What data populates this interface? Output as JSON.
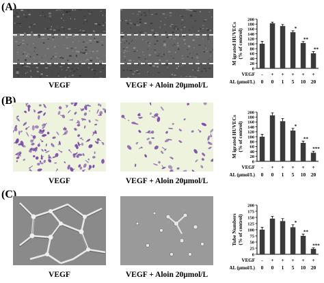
{
  "panels": [
    {
      "label": "(A)",
      "images": [
        {
          "caption": "VEGF"
        },
        {
          "caption": "VEGF + Aloin 20μmol/L"
        }
      ]
    },
    {
      "label": "(B)",
      "images": [
        {
          "caption": "VEGF"
        },
        {
          "caption": "VEGF + Aloin 20μmol/L"
        }
      ]
    },
    {
      "label": "(C)",
      "images": [
        {
          "caption": "VEGF"
        },
        {
          "caption": "VEGF + Aloin 20μmol/L"
        }
      ]
    }
  ],
  "colors": {
    "bar": "#3a3a3a",
    "stain": "#7a4aa8",
    "stain_bg": "#eef3dd",
    "phase_bg": "#8a8a8a"
  },
  "chart_data": [
    {
      "type": "bar",
      "ylabel": "M igrated HUVECs\n(% of control)",
      "ylim": [
        0,
        200
      ],
      "yticks": [
        0,
        20,
        40,
        60,
        80,
        100,
        120,
        140,
        160,
        180,
        200
      ],
      "row_labels": [
        "VEGF",
        "AL (μmol/L)"
      ],
      "vegf": [
        "-",
        "+",
        "+",
        "+",
        "+",
        "+"
      ],
      "al": [
        "0",
        "0",
        "1",
        "5",
        "10",
        "20"
      ],
      "values": [
        100,
        183,
        172,
        147,
        103,
        61
      ],
      "errors": [
        10,
        5,
        6,
        6,
        6,
        7
      ],
      "significance": [
        "",
        "",
        "",
        "*",
        "**",
        "**"
      ]
    },
    {
      "type": "bar",
      "ylabel": "M igrated HUVECs\n(% of control)",
      "ylim": [
        0,
        200
      ],
      "yticks": [
        0,
        20,
        40,
        60,
        80,
        100,
        120,
        140,
        160,
        180,
        200
      ],
      "row_labels": [
        "VEGF",
        "AL (μmol/L)"
      ],
      "vegf": [
        "-",
        "+",
        "+",
        "+",
        "+",
        "+"
      ],
      "al": [
        "0",
        "0",
        "1",
        "5",
        "10",
        "20"
      ],
      "values": [
        100,
        187,
        163,
        125,
        75,
        35
      ],
      "errors": [
        10,
        10,
        11,
        9,
        7,
        6
      ],
      "significance": [
        "",
        "",
        "",
        "*",
        "**",
        "***"
      ]
    },
    {
      "type": "bar",
      "ylabel": "Tube Numbers\n(% of control)",
      "ylim": [
        0,
        200
      ],
      "yticks": [
        0,
        25,
        50,
        75,
        100,
        125,
        150,
        175,
        200
      ],
      "row_labels": [
        "VEGF",
        "AL (μmol/L)"
      ],
      "vegf": [
        "-",
        "+",
        "+",
        "+",
        "+",
        "+"
      ],
      "al": [
        "0",
        "0",
        "1",
        "5",
        "10",
        "20"
      ],
      "values": [
        100,
        145,
        135,
        110,
        75,
        22
      ],
      "errors": [
        10,
        9,
        10,
        10,
        7,
        4
      ],
      "significance": [
        "",
        "",
        "",
        "*",
        "**",
        "***"
      ]
    }
  ]
}
